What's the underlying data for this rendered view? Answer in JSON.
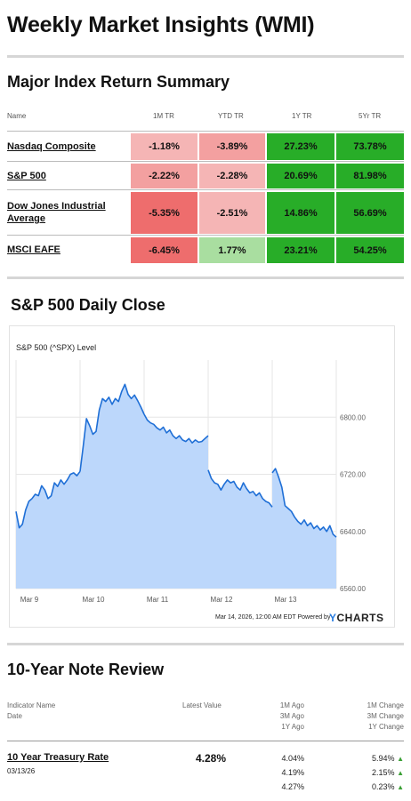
{
  "page_title": "Weekly Market Insights (WMI)",
  "index_section": {
    "title": "Major Index Return Summary",
    "columns": [
      "Name",
      "1M TR",
      "YTD TR",
      "1Y TR",
      "5Yr TR"
    ],
    "rows": [
      {
        "name": "Nasdaq Composite",
        "m1": "-1.18%",
        "ytd": "-3.89%",
        "y1": "27.23%",
        "y5": "73.78%"
      },
      {
        "name": "S&P 500",
        "m1": "-2.22%",
        "ytd": "-2.28%",
        "y1": "20.69%",
        "y5": "81.98%"
      },
      {
        "name_line1": "Dow Jones Industrial",
        "name_line2": "Average",
        "m1": "-5.35%",
        "ytd": "-2.51%",
        "y1": "14.86%",
        "y5": "56.69%"
      },
      {
        "name": "MSCI EAFE",
        "m1": "-6.45%",
        "ytd": "1.77%",
        "y1": "23.21%",
        "y5": "54.25%"
      }
    ],
    "colors": {
      "neg_light": "#f5b5b5",
      "neg_mid": "#f3a0a0",
      "neg_strong": "#ee6d6d",
      "pos_light": "#a9dea0",
      "pos_strong": "#28ad28"
    }
  },
  "chart_section": {
    "title": "S&P 500 Daily Close",
    "series_label": "S&P 500 (^SPX) Level",
    "footer": "Mar 14, 2026, 12:00 AM EDT Powered by",
    "brand_y": "Y",
    "brand_rest": "CHARTS"
  },
  "chart_data": {
    "type": "area",
    "title": "S&P 500 Daily Close",
    "ylabel": "S&P 500 (^SPX) Level",
    "x_ticks": [
      "Mar 9",
      "Mar 10",
      "Mar 11",
      "Mar 12",
      "Mar 13"
    ],
    "y_ticks": [
      "6800.00",
      "6720.00",
      "6640.00",
      "6560.00"
    ],
    "ylim": [
      6560,
      6880
    ],
    "x_range": [
      0,
      5
    ],
    "grid": true,
    "line_color": "#1f6fd6",
    "fill_color": "#bcd7fb",
    "segments": [
      {
        "day": "Mar 9",
        "points": [
          [
            0.0,
            6668
          ],
          [
            0.05,
            6645
          ],
          [
            0.1,
            6650
          ],
          [
            0.15,
            6670
          ],
          [
            0.2,
            6682
          ],
          [
            0.25,
            6686
          ],
          [
            0.3,
            6692
          ],
          [
            0.35,
            6690
          ],
          [
            0.4,
            6704
          ],
          [
            0.45,
            6698
          ],
          [
            0.5,
            6686
          ],
          [
            0.55,
            6690
          ],
          [
            0.6,
            6708
          ],
          [
            0.65,
            6703
          ],
          [
            0.7,
            6712
          ],
          [
            0.75,
            6706
          ],
          [
            0.8,
            6712
          ],
          [
            0.85,
            6720
          ],
          [
            0.9,
            6722
          ],
          [
            0.95,
            6718
          ],
          [
            1.0,
            6724
          ]
        ]
      },
      {
        "day": "Mar 10",
        "points": [
          [
            1.0,
            6724
          ],
          [
            1.05,
            6760
          ],
          [
            1.1,
            6798
          ],
          [
            1.15,
            6788
          ],
          [
            1.2,
            6776
          ],
          [
            1.25,
            6780
          ],
          [
            1.3,
            6810
          ],
          [
            1.35,
            6826
          ],
          [
            1.4,
            6822
          ],
          [
            1.45,
            6828
          ],
          [
            1.5,
            6818
          ],
          [
            1.55,
            6826
          ],
          [
            1.6,
            6822
          ],
          [
            1.65,
            6836
          ],
          [
            1.7,
            6846
          ],
          [
            1.75,
            6832
          ],
          [
            1.8,
            6826
          ],
          [
            1.85,
            6831
          ],
          [
            1.9,
            6823
          ],
          [
            1.95,
            6814
          ],
          [
            2.0,
            6804
          ]
        ]
      },
      {
        "day": "Mar 11",
        "points": [
          [
            2.0,
            6804
          ],
          [
            2.05,
            6796
          ],
          [
            2.1,
            6792
          ],
          [
            2.15,
            6790
          ],
          [
            2.2,
            6785
          ],
          [
            2.25,
            6782
          ],
          [
            2.3,
            6786
          ],
          [
            2.35,
            6778
          ],
          [
            2.4,
            6782
          ],
          [
            2.45,
            6774
          ],
          [
            2.5,
            6770
          ],
          [
            2.55,
            6774
          ],
          [
            2.6,
            6768
          ],
          [
            2.65,
            6766
          ],
          [
            2.7,
            6770
          ],
          [
            2.75,
            6764
          ],
          [
            2.8,
            6768
          ],
          [
            2.85,
            6765
          ],
          [
            2.9,
            6766
          ],
          [
            2.95,
            6770
          ],
          [
            3.0,
            6774
          ]
        ]
      },
      {
        "day": "Mar 12",
        "points": [
          [
            3.0,
            6726
          ],
          [
            3.05,
            6714
          ],
          [
            3.1,
            6708
          ],
          [
            3.15,
            6706
          ],
          [
            3.2,
            6698
          ],
          [
            3.25,
            6706
          ],
          [
            3.3,
            6712
          ],
          [
            3.35,
            6708
          ],
          [
            3.4,
            6710
          ],
          [
            3.45,
            6702
          ],
          [
            3.5,
            6698
          ],
          [
            3.55,
            6708
          ],
          [
            3.6,
            6700
          ],
          [
            3.65,
            6694
          ],
          [
            3.7,
            6696
          ],
          [
            3.75,
            6690
          ],
          [
            3.8,
            6694
          ],
          [
            3.85,
            6686
          ],
          [
            3.9,
            6682
          ],
          [
            3.95,
            6680
          ],
          [
            4.0,
            6674
          ]
        ]
      },
      {
        "day": "Mar 13",
        "points": [
          [
            4.0,
            6722
          ],
          [
            4.05,
            6728
          ],
          [
            4.1,
            6716
          ],
          [
            4.15,
            6702
          ],
          [
            4.2,
            6676
          ],
          [
            4.25,
            6672
          ],
          [
            4.3,
            6668
          ],
          [
            4.35,
            6660
          ],
          [
            4.4,
            6654
          ],
          [
            4.45,
            6650
          ],
          [
            4.5,
            6656
          ],
          [
            4.55,
            6648
          ],
          [
            4.6,
            6652
          ],
          [
            4.65,
            6644
          ],
          [
            4.7,
            6648
          ],
          [
            4.75,
            6642
          ],
          [
            4.8,
            6646
          ],
          [
            4.85,
            6640
          ],
          [
            4.9,
            6648
          ],
          [
            4.95,
            6636
          ],
          [
            5.0,
            6632
          ]
        ]
      }
    ]
  },
  "treasury_section": {
    "title": "10-Year Note Review",
    "head_indicator": "Indicator Name",
    "head_date": "Date",
    "head_latest": "Latest Value",
    "head_ago": [
      "1M Ago",
      "3M Ago",
      "1Y Ago"
    ],
    "head_change": [
      "1M Change",
      "3M Change",
      "1Y Change"
    ],
    "row": {
      "name": "10 Year Treasury Rate",
      "date": "03/13/26",
      "latest": "4.28%",
      "ago": [
        "4.04%",
        "4.19%",
        "4.27%"
      ],
      "change": [
        "5.94%",
        "2.15%",
        "0.23%"
      ]
    }
  }
}
